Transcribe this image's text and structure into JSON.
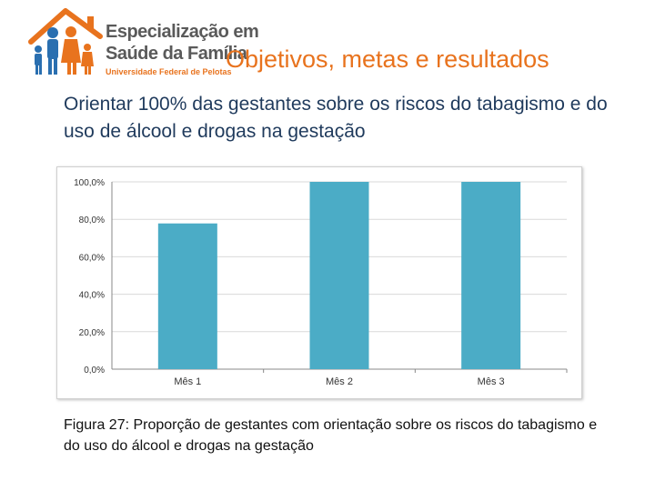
{
  "logo": {
    "line1": "Especialização em",
    "line2": "Saúde da Família",
    "line3": "Universidade Federal de Pelotas"
  },
  "slide": {
    "title": "Objetivos, metas e resultados",
    "subtitle": "Orientar 100% das gestantes sobre os riscos do tabagismo e do uso de álcool e drogas na gestação",
    "caption": "Figura 27: Proporção de gestantes com orientação sobre os riscos do tabagismo e do uso do álcool e drogas na gestação"
  },
  "colors": {
    "accent": "#e8731e",
    "subtitle": "#1f3a5c",
    "bar": "#4bacc6",
    "grid": "#d9d9d9"
  },
  "chart_data": {
    "type": "bar",
    "categories": [
      "Mês 1",
      "Mês 2",
      "Mês 3"
    ],
    "values": [
      77.8,
      100,
      100
    ],
    "ylim": [
      0,
      100
    ],
    "yticks": [
      "0,0%",
      "20,0%",
      "40,0%",
      "60,0%",
      "80,0%",
      "100,0%"
    ],
    "ytick_values": [
      0,
      20,
      40,
      60,
      80,
      100
    ],
    "grid": true,
    "legend": "none"
  }
}
